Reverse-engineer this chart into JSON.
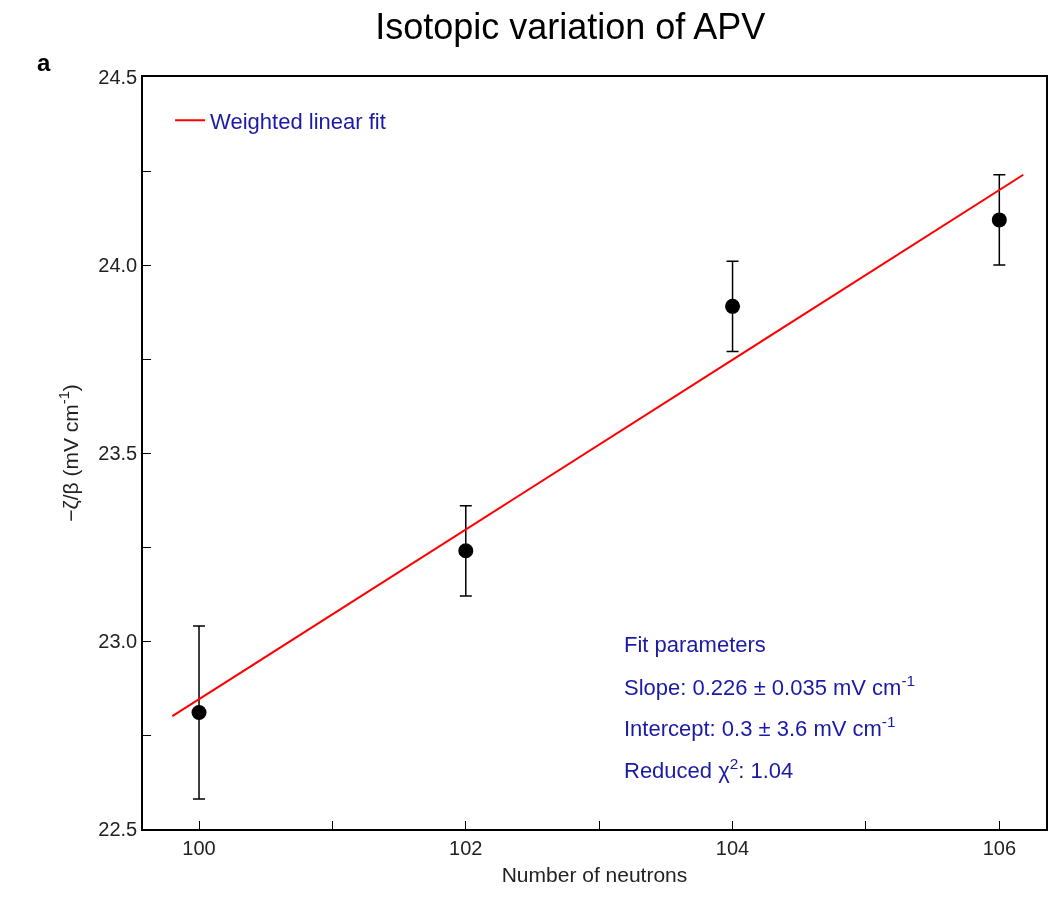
{
  "chart_data": {
    "type": "scatter",
    "title": "Isotopic variation of APV",
    "xlabel": "Number of neutrons",
    "ylabel": "−ζ/β (mV cm$^{-1}$)",
    "xlim": [
      99.58,
      106.35
    ],
    "xticks": [
      100,
      {
        "value": 101,
        "label": null
      },
      102,
      {
        "value": 103,
        "label": null
      },
      104,
      {
        "value": 105,
        "label": null
      },
      106
    ],
    "ylim": [
      22.5,
      24.5
    ],
    "yticks": [
      22.5,
      {
        "value": 22.75,
        "label": null
      },
      {
        "value": 23,
        "label": "23.0"
      },
      {
        "value": 23.25,
        "label": null
      },
      23.5,
      {
        "value": 23.75,
        "label": null
      },
      {
        "value": 24,
        "label": "24.0"
      },
      {
        "value": 24.25,
        "label": null
      },
      24.5
    ],
    "series": [
      {
        "marker": "circle",
        "color": "#000000",
        "x": [
          100,
          102,
          104,
          106
        ],
        "values": [
          22.81,
          23.24,
          23.89,
          24.12
        ],
        "errors": [
          0.23,
          0.12,
          0.12,
          0.12
        ]
      },
      {
        "type": "line",
        "name": "Weighted linear fit",
        "color": "#ff0000",
        "x": [
          99.8,
          106.18
        ],
        "values": [
          22.8,
          24.24
        ]
      }
    ],
    "line_style": "solid",
    "grid": false,
    "legend": "top left",
    "annotations": [
      "a",
      "Fit parameters",
      "Slope: 0.226 ± 0.035 mV cm$^{-1}$",
      "Intercept: 0.3 ± 3.6 mV cm$^{-1}$",
      "Reduced χ$^{2}$: 1.04"
    ]
  }
}
